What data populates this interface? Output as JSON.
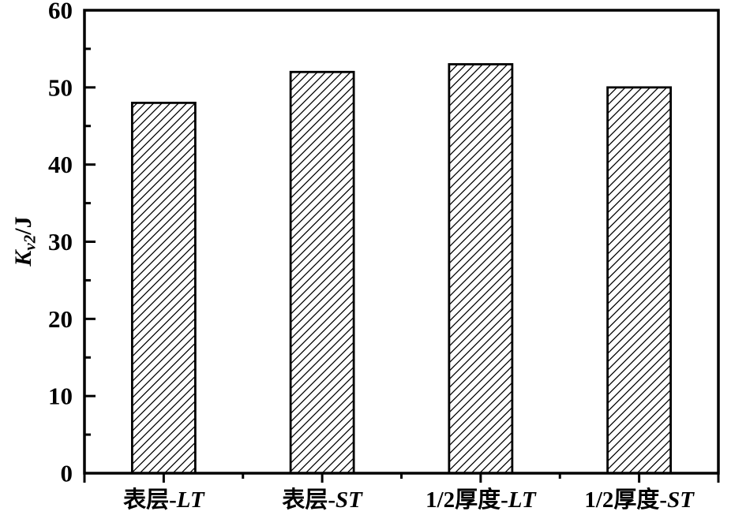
{
  "figure": {
    "background": "#ffffff",
    "foreground": "#000000"
  },
  "chart_data": {
    "type": "bar",
    "title": "",
    "categories": [
      "表层-LT",
      "表层-ST",
      "1/2厚度-LT",
      "1/2厚度-ST"
    ],
    "values": [
      48,
      52,
      53,
      50
    ],
    "xlabel": "",
    "ylabel": "Kv2/J",
    "ylabel_symbol": "K",
    "ylabel_subscript": "v2",
    "ylabel_unit": "/J",
    "ylim": [
      0,
      60
    ],
    "yticks_major": [
      0,
      10,
      20,
      30,
      40,
      50,
      60
    ],
    "yticks_minor": [
      5,
      15,
      25,
      35,
      45,
      55
    ],
    "grid": "off",
    "legend": "none",
    "frame": "full-box",
    "bar_fill": "#ffffff",
    "bar_hatch": "diagonal-forward-slash",
    "stroke_color": "#000000"
  }
}
